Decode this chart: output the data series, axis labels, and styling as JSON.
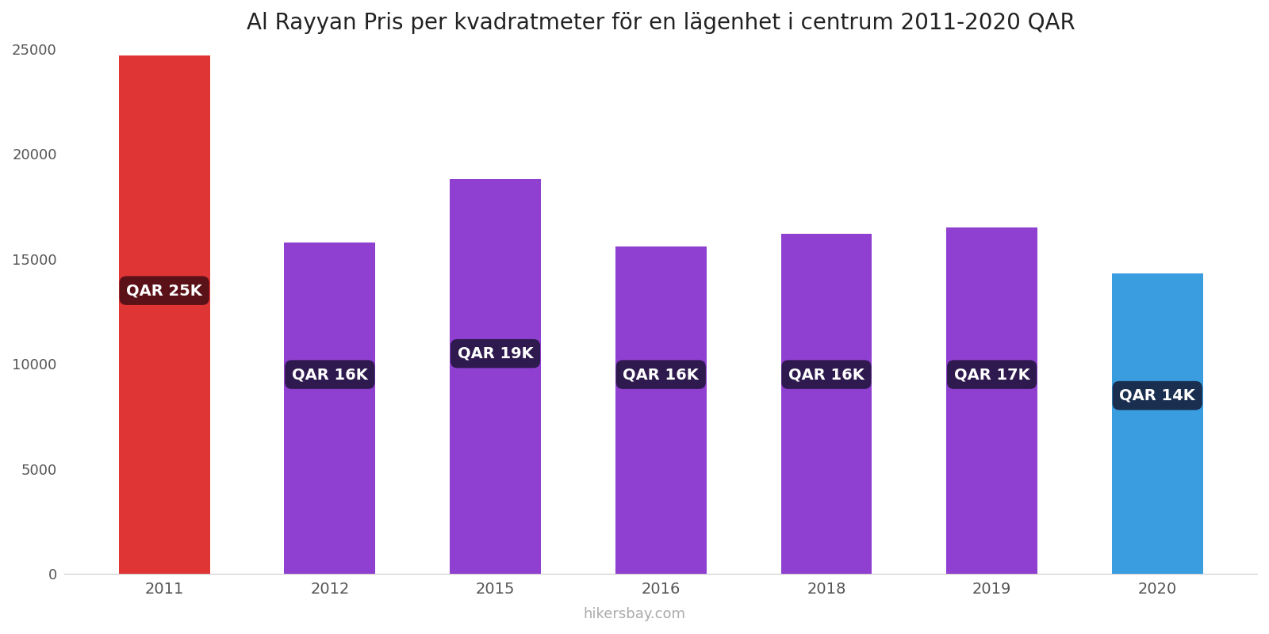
{
  "title": "Al Rayyan Pris per kvadratmeter för en lägenhet i centrum 2011-2020 QAR",
  "years": [
    2011,
    2012,
    2015,
    2016,
    2018,
    2019,
    2020
  ],
  "values": [
    24700,
    15800,
    18800,
    15600,
    16200,
    16500,
    14300
  ],
  "labels": [
    "QAR 25K",
    "QAR 16K",
    "QAR 19K",
    "QAR 16K",
    "QAR 16K",
    "QAR 17K",
    "QAR 14K"
  ],
  "bar_colors": [
    "#e03535",
    "#9040d0",
    "#9040d0",
    "#9040d0",
    "#9040d0",
    "#9040d0",
    "#3a9de0"
  ],
  "label_bg_colors": [
    "#5a1218",
    "#2e1a4e",
    "#2e1a4e",
    "#2e1a4e",
    "#2e1a4e",
    "#2e1a4e",
    "#1a2e50"
  ],
  "label_y_values": [
    13500,
    9500,
    10500,
    9500,
    9500,
    9500,
    8500
  ],
  "ylim": [
    0,
    25000
  ],
  "yticks": [
    0,
    5000,
    10000,
    15000,
    20000,
    25000
  ],
  "watermark": "hikersbay.com",
  "background_color": "#ffffff",
  "title_fontsize": 20,
  "bar_width": 0.55
}
